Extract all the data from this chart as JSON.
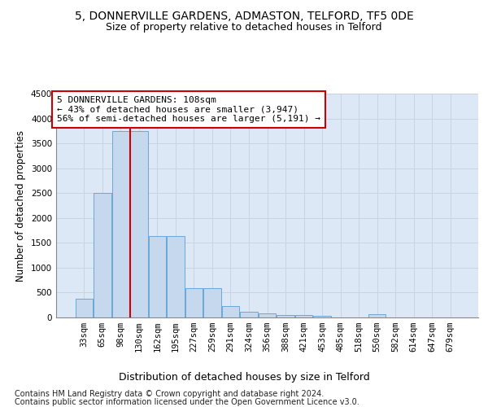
{
  "title1": "5, DONNERVILLE GARDENS, ADMASTON, TELFORD, TF5 0DE",
  "title2": "Size of property relative to detached houses in Telford",
  "xlabel": "Distribution of detached houses by size in Telford",
  "ylabel": "Number of detached properties",
  "footer1": "Contains HM Land Registry data © Crown copyright and database right 2024.",
  "footer2": "Contains public sector information licensed under the Open Government Licence v3.0.",
  "annotation_line1": "5 DONNERVILLE GARDENS: 108sqm",
  "annotation_line2": "← 43% of detached houses are smaller (3,947)",
  "annotation_line3": "56% of semi-detached houses are larger (5,191) →",
  "bar_categories": [
    "33sqm",
    "65sqm",
    "98sqm",
    "130sqm",
    "162sqm",
    "195sqm",
    "227sqm",
    "259sqm",
    "291sqm",
    "324sqm",
    "356sqm",
    "388sqm",
    "421sqm",
    "453sqm",
    "485sqm",
    "518sqm",
    "550sqm",
    "582sqm",
    "614sqm",
    "647sqm",
    "679sqm"
  ],
  "bar_values": [
    370,
    2500,
    3750,
    3750,
    1640,
    1640,
    590,
    590,
    225,
    110,
    90,
    55,
    45,
    40,
    0,
    0,
    60,
    0,
    0,
    0,
    0
  ],
  "bar_color": "#c5d8ee",
  "bar_edge_color": "#5a9fd4",
  "red_line_index": 2.5,
  "ylim": [
    0,
    4500
  ],
  "yticks": [
    0,
    500,
    1000,
    1500,
    2000,
    2500,
    3000,
    3500,
    4000,
    4500
  ],
  "grid_color": "#c8d4e0",
  "bg_color": "#dce8f5",
  "annotation_box_facecolor": "#ffffff",
  "annotation_box_edgecolor": "#cc0000",
  "red_line_color": "#cc0000",
  "title1_fontsize": 10,
  "title2_fontsize": 9,
  "ylabel_fontsize": 8.5,
  "xlabel_fontsize": 9,
  "tick_fontsize": 7.5,
  "annotation_fontsize": 8,
  "footer_fontsize": 7
}
